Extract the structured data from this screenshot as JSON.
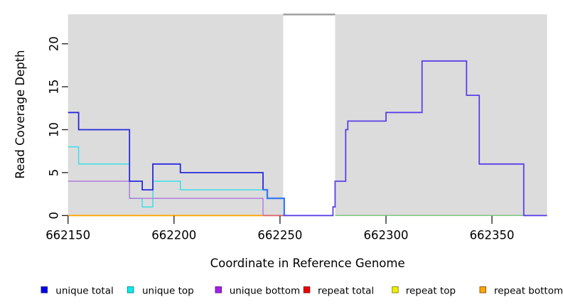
{
  "title": "",
  "x_axis": {
    "label": "Coordinate in Reference Genome",
    "ticks": [
      {
        "value": 662150,
        "label": "662150"
      },
      {
        "value": 662200,
        "label": "662200"
      },
      {
        "value": 662250,
        "label": "662250"
      },
      {
        "value": 662300,
        "label": "662300"
      },
      {
        "value": 662350,
        "label": "662350"
      }
    ]
  },
  "y_axis": {
    "label": "Read Coverage Depth",
    "ticks": [
      {
        "value": 0,
        "label": "0"
      },
      {
        "value": 5,
        "label": "5"
      },
      {
        "value": 10,
        "label": "10"
      },
      {
        "value": 15,
        "label": "15"
      },
      {
        "value": 20,
        "label": "20"
      }
    ]
  },
  "legend": {
    "items": [
      {
        "label": "unique total",
        "fill": "#0000f0",
        "border": "#1a1a8c"
      },
      {
        "label": "unique top",
        "fill": "#00eeee",
        "border": "#1a8c8c"
      },
      {
        "label": "unique bottom",
        "fill": "#a020f0",
        "border": "#6a1a8c"
      },
      {
        "label": "repeat total",
        "fill": "#ee0000",
        "border": "#8c1a1a"
      },
      {
        "label": "repeat top",
        "fill": "#eeee00",
        "border": "#8c8c1a"
      },
      {
        "label": "repeat bottom",
        "fill": "#ffa500",
        "border": "#8c5a1a"
      }
    ]
  },
  "colors": {
    "panel_gray": "#dcdcdc",
    "gap_top_line": "#9c9c9c",
    "tick_color": "#1a1a1a"
  },
  "chart_data": {
    "type": "line",
    "style": "step-post",
    "xlabel": "Coordinate in Reference Genome",
    "ylabel": "Read Coverage Depth",
    "xlim": [
      662150,
      662376
    ],
    "ylim": [
      0,
      23.43
    ],
    "grid": false,
    "background_blocks": [
      {
        "name": "masked-region-left",
        "x1": 662150,
        "x2": 662251.5
      },
      {
        "name": "masked-region-right",
        "x1": 662276,
        "x2": 662376
      }
    ],
    "gap_top_line": {
      "x1": 662251.5,
      "x2": 662276
    },
    "series": [
      {
        "name": "repeat-bottom-zero",
        "color": "#ffa500",
        "width": 1.8,
        "points": [
          [
            662150,
            0
          ],
          [
            662242,
            0
          ]
        ]
      },
      {
        "name": "zero-overlap-unique-bottom-repeat",
        "color": "#e0686c",
        "width": 1.8,
        "points": [
          [
            662242,
            0
          ],
          [
            662251.5,
            0
          ]
        ]
      },
      {
        "name": "unique-top",
        "color": "#3cdee8",
        "width": 1.5,
        "points": [
          [
            662150,
            8
          ],
          [
            662155,
            6
          ],
          [
            662179,
            2
          ],
          [
            662185,
            1
          ],
          [
            662190,
            4
          ],
          [
            662203,
            3
          ],
          [
            662244,
            2
          ],
          [
            662252,
            0
          ]
        ]
      },
      {
        "name": "unique-bottom",
        "color": "#b07edc",
        "width": 1.5,
        "points": [
          [
            662150,
            4
          ],
          [
            662179,
            2
          ],
          [
            662242,
            0
          ]
        ]
      },
      {
        "name": "unique-total-left",
        "color": "#2929dc",
        "width": 1.8,
        "points": [
          [
            662150,
            12
          ],
          [
            662155,
            10
          ],
          [
            662179,
            4
          ],
          [
            662185,
            3
          ],
          [
            662190,
            6
          ],
          [
            662203,
            5
          ],
          [
            662242,
            3
          ]
        ]
      },
      {
        "name": "unique-total-over-top",
        "color": "#3d7bf0",
        "width": 2.4,
        "points": [
          [
            662242,
            3
          ],
          [
            662244,
            2
          ],
          [
            662252,
            0
          ]
        ]
      },
      {
        "name": "zero-overlap-top-green",
        "color": "#7cc87c",
        "width": 1.5,
        "points": [
          [
            662276,
            0
          ],
          [
            662365,
            0
          ]
        ]
      },
      {
        "name": "unique-total-right",
        "color": "#5a41e8",
        "width": 1.8,
        "points": [
          [
            662251.5,
            0
          ],
          [
            662275,
            1
          ],
          [
            662276,
            4
          ],
          [
            662281,
            10
          ],
          [
            662282,
            11
          ],
          [
            662300,
            12
          ],
          [
            662317,
            18
          ],
          [
            662338,
            14
          ],
          [
            662344,
            6
          ],
          [
            662365,
            0
          ],
          [
            662376,
            0
          ]
        ]
      }
    ]
  }
}
